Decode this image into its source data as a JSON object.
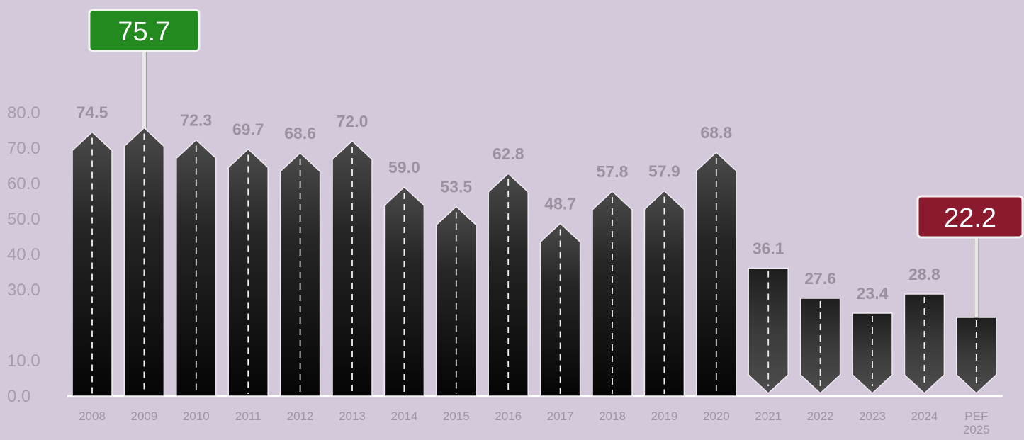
{
  "chart_data": {
    "type": "bar",
    "title": "",
    "xlabel": "",
    "ylabel": "",
    "categories": [
      "2008",
      "2009",
      "2010",
      "2011",
      "2012",
      "2013",
      "2014",
      "2015",
      "2016",
      "2017",
      "2018",
      "2019",
      "2020",
      "2021",
      "2022",
      "2023",
      "2024",
      "PEF 2025"
    ],
    "values": [
      74.5,
      75.7,
      72.3,
      69.7,
      68.6,
      72.0,
      59.0,
      53.5,
      62.8,
      48.7,
      57.8,
      57.9,
      68.8,
      36.1,
      27.6,
      23.4,
      28.8,
      22.2
    ],
    "data_labels": [
      "74.5",
      "",
      "72.3",
      "69.7",
      "68.6",
      "72.0",
      "59.0",
      "53.5",
      "62.8",
      "48.7",
      "57.8",
      "57.9",
      "68.8",
      "36.1",
      "27.6",
      "23.4",
      "28.8",
      ""
    ],
    "y_ticks": [
      "0.0",
      "10.0",
      "30.0",
      "40.0",
      "50.0",
      "60.0",
      "70.0",
      "80.0"
    ],
    "y_tick_values": [
      0,
      10,
      30,
      40,
      50,
      60,
      70,
      80
    ],
    "ylim": [
      0,
      80
    ],
    "grid": false,
    "highlights": [
      {
        "category": "2009",
        "label": "75.7",
        "color": "#238a1f"
      },
      {
        "category": "PEF 2025",
        "label": "22.2",
        "color": "#8c1a2e"
      }
    ],
    "colors": {
      "background": "#d4c9db",
      "bar": "#1c1c1c",
      "bar_light": "#4a4a4a"
    }
  }
}
